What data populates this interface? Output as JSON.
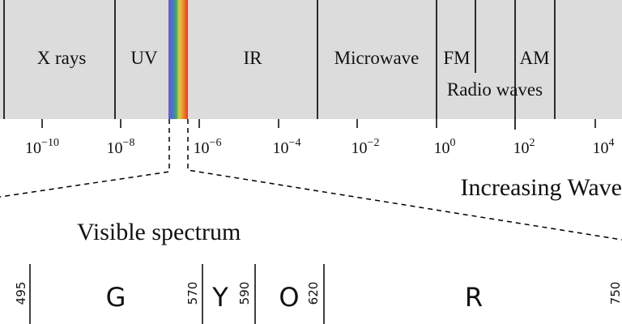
{
  "spectrum": {
    "bands": [
      "X rays",
      "UV",
      "IR",
      "Microwave",
      "FM",
      "AM"
    ],
    "radio_label": "Radio waves",
    "ticks": [
      {
        "base": "10",
        "exp": "−10"
      },
      {
        "base": "10",
        "exp": "−8"
      },
      {
        "base": "10",
        "exp": "−6"
      },
      {
        "base": "10",
        "exp": "−4"
      },
      {
        "base": "10",
        "exp": "−2"
      },
      {
        "base": "10",
        "exp": "0"
      },
      {
        "base": "10",
        "exp": "2"
      },
      {
        "base": "10",
        "exp": "4"
      }
    ],
    "axis_label": "Increasing Wave"
  },
  "visible": {
    "title": "Visible spectrum",
    "colors": [
      "G",
      "Y",
      "O",
      "R"
    ],
    "wavelengths": [
      "495",
      "570",
      "590",
      "620",
      "750"
    ]
  }
}
